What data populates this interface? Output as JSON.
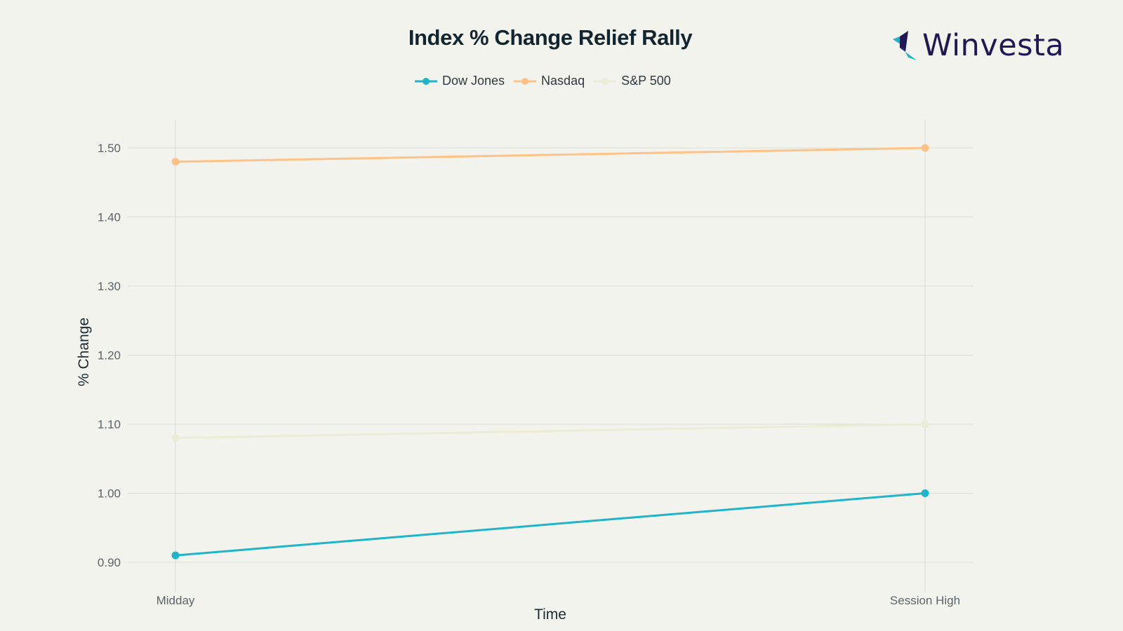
{
  "logo": {
    "text": "Winvesta",
    "mark_colors": [
      "#1f1855",
      "#1fb5c9"
    ]
  },
  "chart_data": {
    "type": "line",
    "title": "Index % Change Relief Rally",
    "xlabel": "Time",
    "ylabel": "% Change",
    "categories": [
      "Midday",
      "Session High"
    ],
    "ylim": [
      0.87,
      1.54
    ],
    "yticks": [
      "0.90",
      "1.00",
      "1.10",
      "1.20",
      "1.30",
      "1.40",
      "1.50"
    ],
    "grid": true,
    "legend_position": "top-center",
    "series": [
      {
        "name": "Dow Jones",
        "values": [
          0.91,
          1.0
        ],
        "color": "#1fb5c9"
      },
      {
        "name": "Nasdaq",
        "values": [
          1.48,
          1.5
        ],
        "color": "#ffc185"
      },
      {
        "name": "S&P 500",
        "values": [
          1.08,
          1.1
        ],
        "color": "#ecebd5"
      }
    ]
  }
}
